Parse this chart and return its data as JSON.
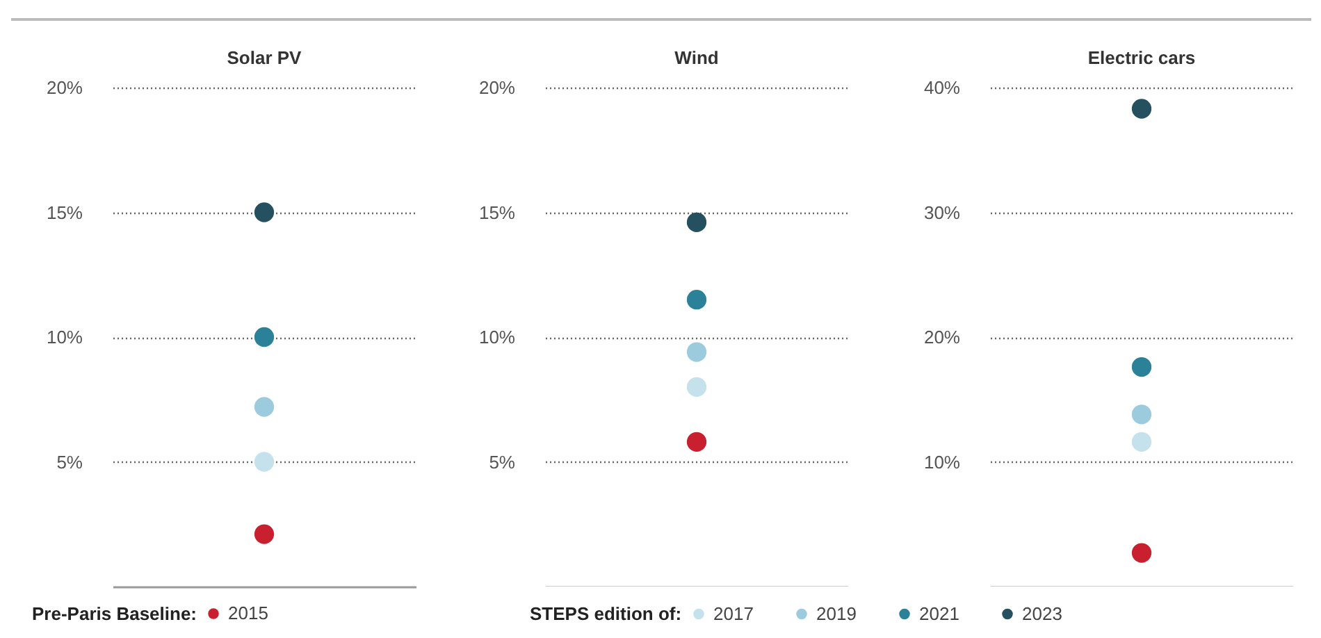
{
  "chart_data": [
    {
      "type": "scatter",
      "title": "Solar PV",
      "categories": [
        null
      ],
      "ylim": [
        0,
        20
      ],
      "yticks": [
        {
          "value": 5,
          "label": "5%"
        },
        {
          "value": 10,
          "label": "10%"
        },
        {
          "value": 15,
          "label": "15%"
        },
        {
          "value": 20,
          "label": "20%"
        }
      ],
      "grid": "y",
      "marker": "circle",
      "legend": "bottom",
      "legend_title": "STEPS edition of:",
      "annotations": [
        "Pre-Paris Baseline:"
      ],
      "series": [
        {
          "name": "2015",
          "color": "#c8202f",
          "values": [
            2.1
          ]
        },
        {
          "name": "2017",
          "color": "#c4e1ec",
          "values": [
            5.0
          ]
        },
        {
          "name": "2019",
          "color": "#9ccbdd",
          "values": [
            7.2
          ]
        },
        {
          "name": "2021",
          "color": "#2a8198",
          "values": [
            10.0
          ]
        },
        {
          "name": "2023",
          "color": "#24505f",
          "values": [
            15.0
          ]
        }
      ]
    },
    {
      "type": "scatter",
      "title": "Wind",
      "categories": [
        null
      ],
      "ylim": [
        0,
        20
      ],
      "yticks": [
        {
          "value": 5,
          "label": "5%"
        },
        {
          "value": 10,
          "label": "10%"
        },
        {
          "value": 15,
          "label": "15%"
        },
        {
          "value": 20,
          "label": "20%"
        }
      ],
      "grid": "y",
      "marker": "circle",
      "series": [
        {
          "name": "2015",
          "color": "#c8202f",
          "values": [
            5.8
          ]
        },
        {
          "name": "2017",
          "color": "#c4e1ec",
          "values": [
            8.0
          ]
        },
        {
          "name": "2019",
          "color": "#9ccbdd",
          "values": [
            9.4
          ]
        },
        {
          "name": "2021",
          "color": "#2a8198",
          "values": [
            11.5
          ]
        },
        {
          "name": "2023",
          "color": "#24505f",
          "values": [
            14.6
          ]
        }
      ]
    },
    {
      "type": "scatter",
      "title": "Electric cars",
      "categories": [
        null
      ],
      "ylim": [
        0,
        40
      ],
      "yticks": [
        {
          "value": 10,
          "label": "10%"
        },
        {
          "value": 20,
          "label": "20%"
        },
        {
          "value": 30,
          "label": "30%"
        },
        {
          "value": 40,
          "label": "40%"
        }
      ],
      "grid": "y",
      "marker": "circle",
      "series": [
        {
          "name": "2015",
          "color": "#c8202f",
          "values": [
            2.7
          ]
        },
        {
          "name": "2017",
          "color": "#c4e1ec",
          "values": [
            11.6
          ]
        },
        {
          "name": "2019",
          "color": "#9ccbdd",
          "values": [
            13.8
          ]
        },
        {
          "name": "2021",
          "color": "#2a8198",
          "values": [
            17.6
          ]
        },
        {
          "name": "2023",
          "color": "#24505f",
          "values": [
            38.3
          ]
        }
      ]
    }
  ]
}
